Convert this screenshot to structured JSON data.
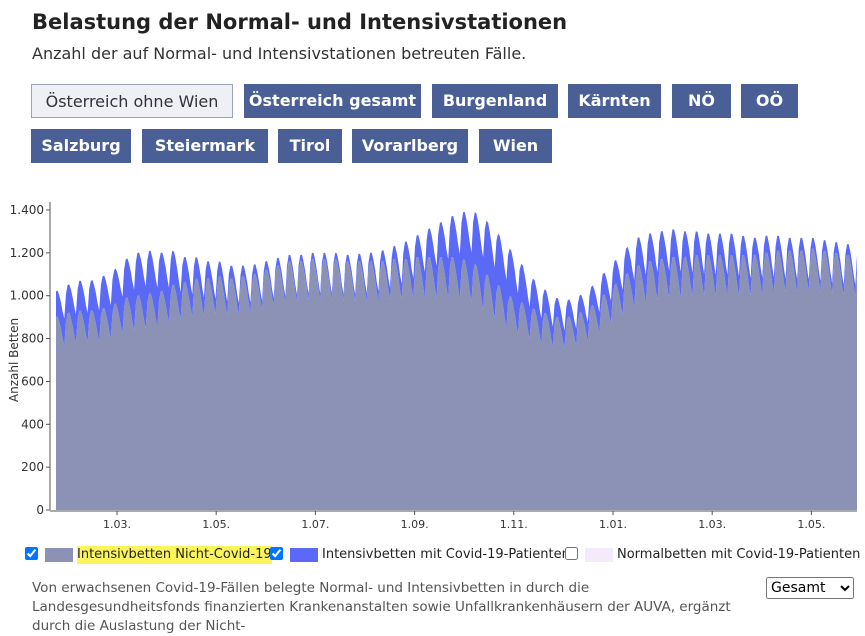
{
  "header": {
    "title": "Belastung der Normal- und Intensivstationen",
    "subtitle": "Anzahl der auf Normal- und Intensivstationen betreuten Fälle."
  },
  "region_buttons": [
    {
      "label": "Österreich ohne Wien",
      "active": true
    },
    {
      "label": "Österreich gesamt",
      "active": false
    },
    {
      "label": "Burgenland",
      "active": false
    },
    {
      "label": "Kärnten",
      "active": false
    },
    {
      "label": "NÖ",
      "active": false
    },
    {
      "label": "OÖ",
      "active": false
    },
    {
      "label": "Salzburg",
      "active": false
    },
    {
      "label": "Steiermark",
      "active": false
    },
    {
      "label": "Tirol",
      "active": false
    },
    {
      "label": "Vorarlberg",
      "active": false
    },
    {
      "label": "Wien",
      "active": false
    }
  ],
  "chart_data": {
    "type": "area",
    "stacked": true,
    "ylabel": "Anzahl Betten",
    "ylim": [
      0,
      1400
    ],
    "yticks": [
      0,
      200,
      400,
      600,
      800,
      1000,
      1200,
      1400
    ],
    "ytick_labels": [
      "0",
      "200",
      "400",
      "600",
      "800",
      "1.000",
      "1.200",
      "1.400"
    ],
    "xticks": [
      "1.03.",
      "1.05.",
      "1.07.",
      "1.09.",
      "1.11.",
      "1.01.",
      "1.03.",
      "1.05."
    ],
    "grid": false,
    "x_resolution": "daily (weekly oscillation)",
    "series": [
      {
        "name": "Intensivbetten Nicht-Covid-19",
        "color": "#8c92b5",
        "checked": true,
        "trend_per_week": [
          900,
          920,
          930,
          930,
          940,
          960,
          990,
          1000,
          1010,
          1020,
          1050,
          1060,
          1080,
          1080,
          1090,
          1080,
          1090,
          1100,
          1120,
          1140,
          1160,
          1160,
          1170,
          1170,
          1170,
          1160,
          1160,
          1160,
          1160,
          1170,
          1170,
          1180,
          1180,
          1180,
          1180,
          1170,
          1150,
          1100,
          1050,
          1000,
          970,
          940,
          920,
          900,
          900,
          920,
          950,
          1000,
          1050,
          1100,
          1140,
          1160,
          1170,
          1180,
          1180,
          1190,
          1190,
          1190,
          1190,
          1190,
          1190,
          1200,
          1210,
          1210,
          1210,
          1220,
          1210,
          1200,
          1190
        ]
      },
      {
        "name": "Intensivbetten mit Covid-19-Patienten",
        "color": "#5a6af6",
        "checked": true,
        "trend_per_week": [
          120,
          130,
          140,
          140,
          150,
          160,
          180,
          200,
          200,
          180,
          160,
          120,
          100,
          80,
          70,
          60,
          50,
          45,
          40,
          35,
          30,
          30,
          30,
          30,
          30,
          30,
          35,
          40,
          50,
          60,
          80,
          100,
          130,
          160,
          190,
          220,
          240,
          250,
          240,
          220,
          180,
          140,
          110,
          90,
          80,
          80,
          90,
          100,
          110,
          120,
          130,
          130,
          130,
          130,
          120,
          110,
          100,
          100,
          100,
          90,
          80,
          80,
          70,
          60,
          60,
          50,
          50,
          50,
          50
        ]
      },
      {
        "name": "Normalbetten mit Covid-19-Patienten",
        "color": "#f5eafa",
        "checked": false
      }
    ]
  },
  "legend": [
    {
      "label": "Intensivbetten Nicht-Covid-19",
      "color": "#8c92b5",
      "checked": true,
      "highlighted": true
    },
    {
      "label": "Intensivbetten mit Covid-19-Patienten",
      "color": "#5a6af6",
      "checked": true,
      "highlighted": false
    },
    {
      "label": "Normalbetten mit Covid-19-Patienten",
      "color": "#f5eafa",
      "checked": false,
      "highlighted": false
    }
  ],
  "footnote": "Von erwachsenen Covid-19-Fällen belegte Normal- und Intensivbetten in durch die Landesgesundheitsfonds finanzierten Krankenanstalten sowie Unfallkrankenhäusern der AUVA, ergänzt durch die Auslastung der Nicht-",
  "select": {
    "selected": "Gesamt",
    "options": [
      "Gesamt"
    ]
  }
}
